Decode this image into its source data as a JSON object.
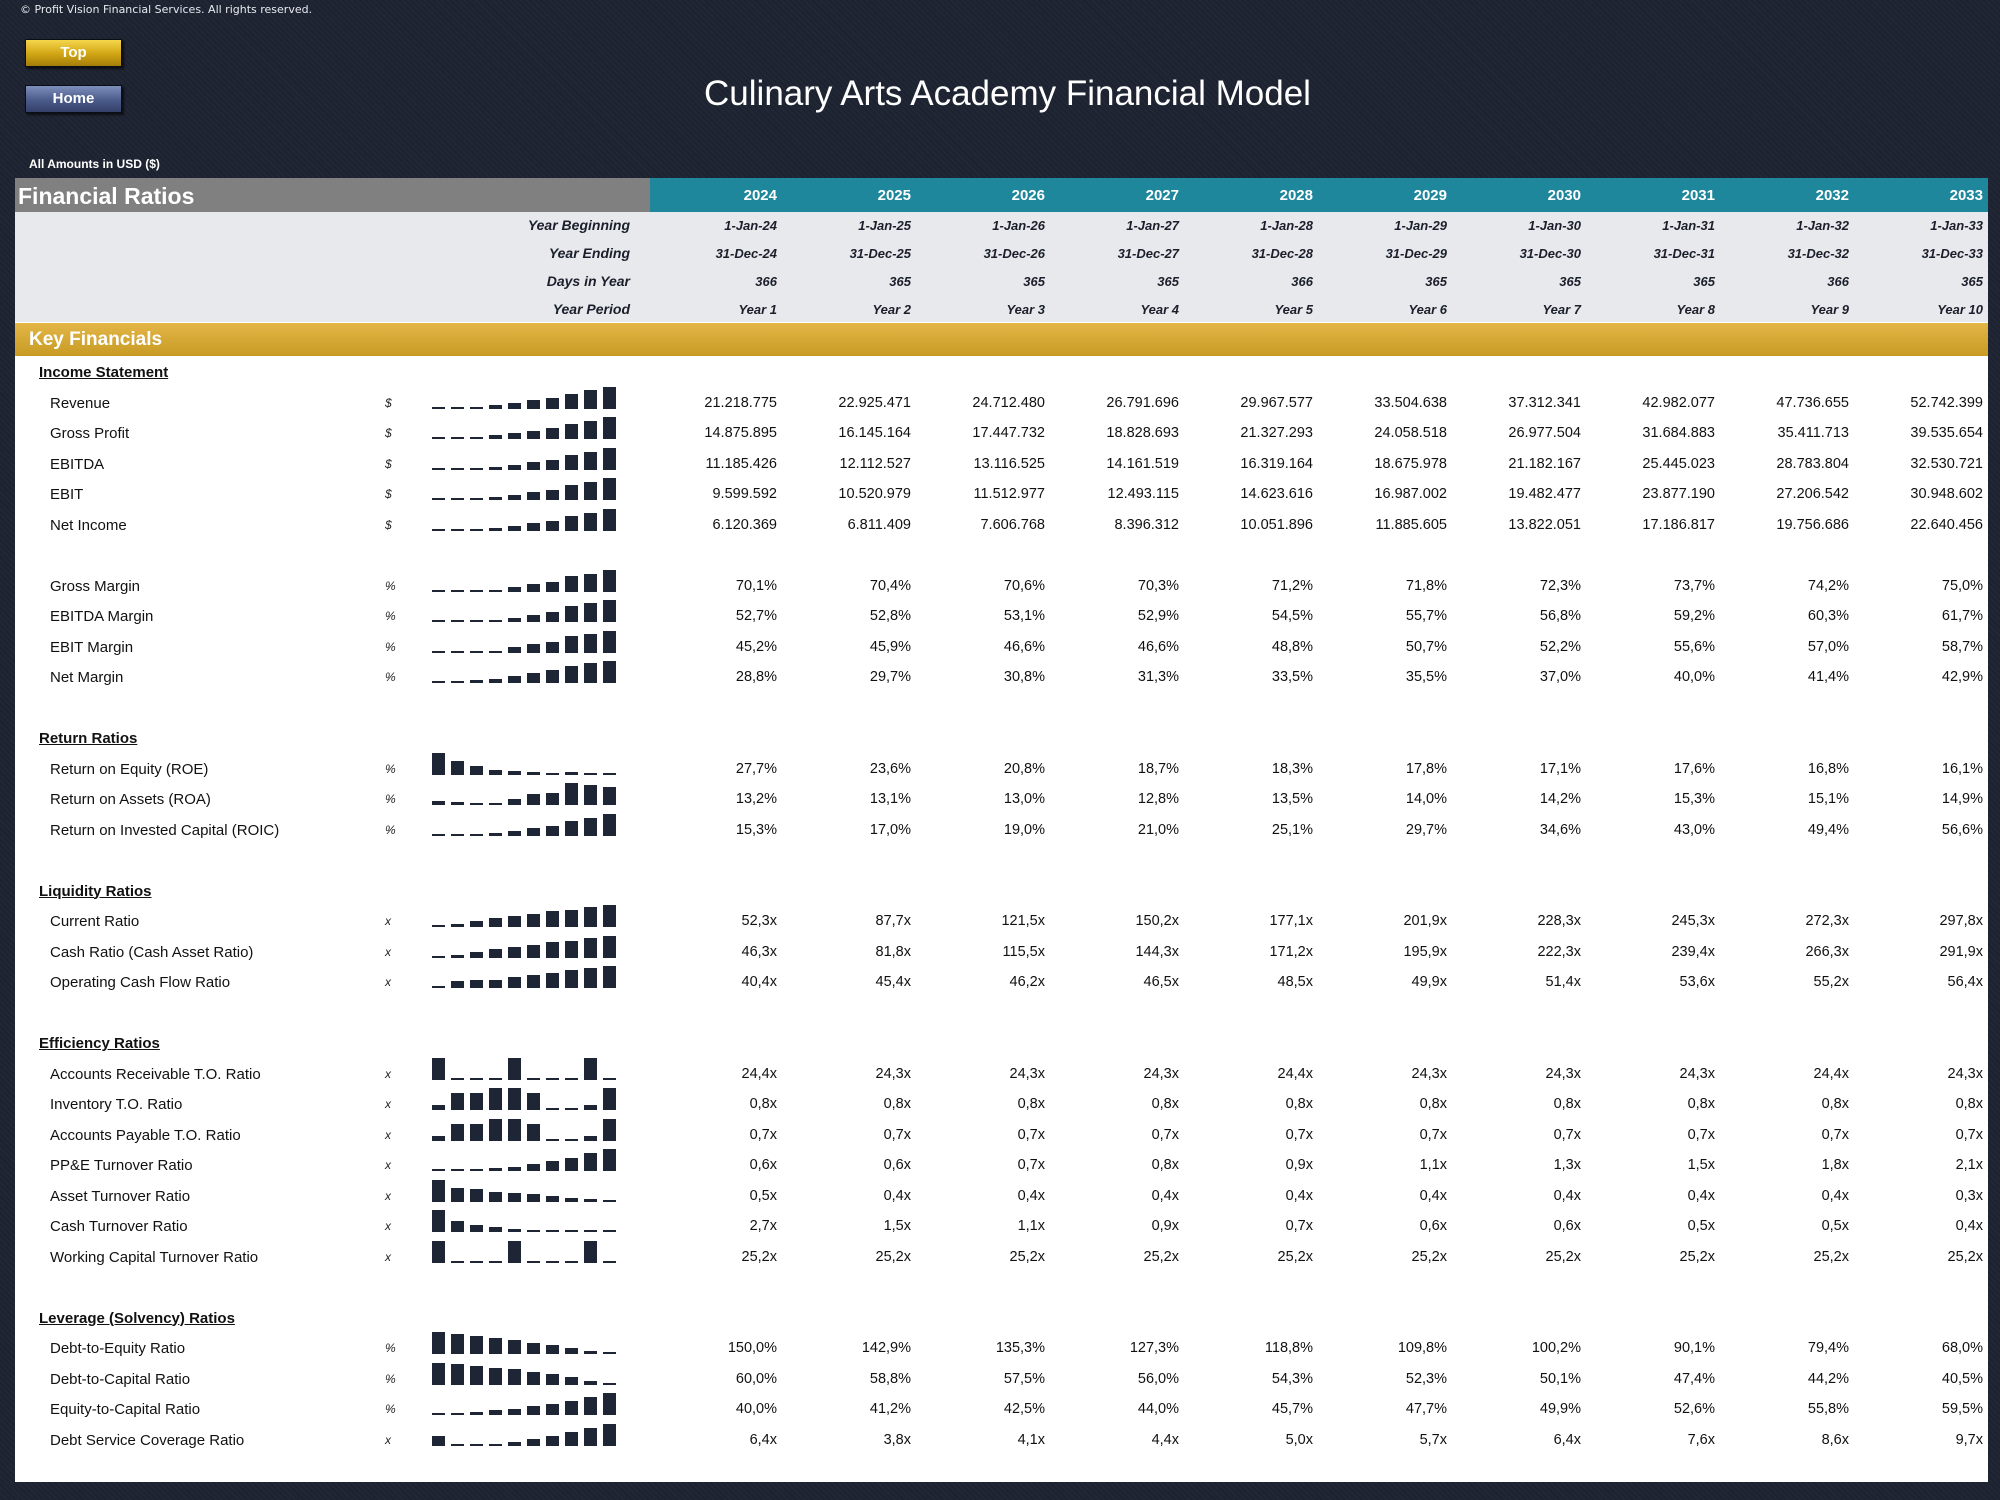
{
  "copyright": "© Profit Vision Financial Services. All rights reserved.",
  "nav": {
    "top_label": "Top",
    "home_label": "Home"
  },
  "title": "Culinary Arts Academy Financial Model",
  "currency_note": "All Amounts in  USD ($)",
  "colors": {
    "header_gray": "#808080",
    "years_teal": "#1f879c",
    "key_financials_gold": "#d4a733",
    "spark_bar": "#1e2636"
  },
  "header": {
    "section_label": "Financial Ratios",
    "years": [
      "2024",
      "2025",
      "2026",
      "2027",
      "2028",
      "2029",
      "2030",
      "2031",
      "2032",
      "2033"
    ],
    "info_rows": [
      {
        "label": "Year Beginning",
        "values": [
          "1-Jan-24",
          "1-Jan-25",
          "1-Jan-26",
          "1-Jan-27",
          "1-Jan-28",
          "1-Jan-29",
          "1-Jan-30",
          "1-Jan-31",
          "1-Jan-32",
          "1-Jan-33"
        ]
      },
      {
        "label": "Year Ending",
        "values": [
          "31-Dec-24",
          "31-Dec-25",
          "31-Dec-26",
          "31-Dec-27",
          "31-Dec-28",
          "31-Dec-29",
          "31-Dec-30",
          "31-Dec-31",
          "31-Dec-32",
          "31-Dec-33"
        ]
      },
      {
        "label": "Days in Year",
        "values": [
          "366",
          "365",
          "365",
          "365",
          "366",
          "365",
          "365",
          "365",
          "366",
          "365"
        ]
      },
      {
        "label": "Year Period",
        "values": [
          "Year 1",
          "Year 2",
          "Year 3",
          "Year 4",
          "Year 5",
          "Year 6",
          "Year 7",
          "Year 8",
          "Year 9",
          "Year 10"
        ]
      }
    ]
  },
  "key_financials_label": "Key Financials",
  "sections": [
    {
      "title": "Income Statement",
      "rows": [
        {
          "label": "Revenue",
          "unit": "$",
          "values": [
            "21.218.775",
            "22.925.471",
            "24.712.480",
            "26.791.696",
            "29.967.577",
            "33.504.638",
            "37.312.341",
            "42.982.077",
            "47.736.655",
            "52.742.399"
          ],
          "spark": [
            21218775,
            22925471,
            24712480,
            26791696,
            29967577,
            33504638,
            37312341,
            42982077,
            47736655,
            52742399
          ]
        },
        {
          "label": "Gross Profit",
          "unit": "$",
          "values": [
            "14.875.895",
            "16.145.164",
            "17.447.732",
            "18.828.693",
            "21.327.293",
            "24.058.518",
            "26.977.504",
            "31.684.883",
            "35.411.713",
            "39.535.654"
          ],
          "spark": [
            14875895,
            16145164,
            17447732,
            18828693,
            21327293,
            24058518,
            26977504,
            31684883,
            35411713,
            39535654
          ]
        },
        {
          "label": "EBITDA",
          "unit": "$",
          "values": [
            "11.185.426",
            "12.112.527",
            "13.116.525",
            "14.161.519",
            "16.319.164",
            "18.675.978",
            "21.182.167",
            "25.445.023",
            "28.783.804",
            "32.530.721"
          ],
          "spark": [
            11185426,
            12112527,
            13116525,
            14161519,
            16319164,
            18675978,
            21182167,
            25445023,
            28783804,
            32530721
          ]
        },
        {
          "label": "EBIT",
          "unit": "$",
          "values": [
            "9.599.592",
            "10.520.979",
            "11.512.977",
            "12.493.115",
            "14.623.616",
            "16.987.002",
            "19.482.477",
            "23.877.190",
            "27.206.542",
            "30.948.602"
          ],
          "spark": [
            9599592,
            10520979,
            11512977,
            12493115,
            14623616,
            16987002,
            19482477,
            23877190,
            27206542,
            30948602
          ]
        },
        {
          "label": "Net Income",
          "unit": "$",
          "values": [
            "6.120.369",
            "6.811.409",
            "7.606.768",
            "8.396.312",
            "10.051.896",
            "11.885.605",
            "13.822.051",
            "17.186.817",
            "19.756.686",
            "22.640.456"
          ],
          "spark": [
            6120369,
            6811409,
            7606768,
            8396312,
            10051896,
            11885605,
            13822051,
            17186817,
            19756686,
            22640456
          ]
        }
      ]
    },
    {
      "title": "",
      "rows": [
        {
          "label": "Gross Margin",
          "unit": "%",
          "values": [
            "70,1%",
            "70,4%",
            "70,6%",
            "70,3%",
            "71,2%",
            "71,8%",
            "72,3%",
            "73,7%",
            "74,2%",
            "75,0%"
          ],
          "spark": [
            70.1,
            70.4,
            70.6,
            70.3,
            71.2,
            71.8,
            72.3,
            73.7,
            74.2,
            75.0
          ]
        },
        {
          "label": "EBITDA Margin",
          "unit": "%",
          "values": [
            "52,7%",
            "52,8%",
            "53,1%",
            "52,9%",
            "54,5%",
            "55,7%",
            "56,8%",
            "59,2%",
            "60,3%",
            "61,7%"
          ],
          "spark": [
            52.7,
            52.8,
            53.1,
            52.9,
            54.5,
            55.7,
            56.8,
            59.2,
            60.3,
            61.7
          ]
        },
        {
          "label": "EBIT Margin",
          "unit": "%",
          "values": [
            "45,2%",
            "45,9%",
            "46,6%",
            "46,6%",
            "48,8%",
            "50,7%",
            "52,2%",
            "55,6%",
            "57,0%",
            "58,7%"
          ],
          "spark": [
            45.2,
            45.9,
            46.6,
            46.6,
            48.8,
            50.7,
            52.2,
            55.6,
            57.0,
            58.7
          ]
        },
        {
          "label": "Net Margin",
          "unit": "%",
          "values": [
            "28,8%",
            "29,7%",
            "30,8%",
            "31,3%",
            "33,5%",
            "35,5%",
            "37,0%",
            "40,0%",
            "41,4%",
            "42,9%"
          ],
          "spark": [
            28.8,
            29.7,
            30.8,
            31.3,
            33.5,
            35.5,
            37.0,
            40.0,
            41.4,
            42.9
          ]
        }
      ]
    },
    {
      "title": "Return Ratios",
      "rows": [
        {
          "label": "Return on Equity (ROE)",
          "unit": "%",
          "values": [
            "27,7%",
            "23,6%",
            "20,8%",
            "18,7%",
            "18,3%",
            "17,8%",
            "17,1%",
            "17,6%",
            "16,8%",
            "16,1%"
          ],
          "spark": [
            27.7,
            23.6,
            20.8,
            18.7,
            18.3,
            17.8,
            17.1,
            17.6,
            16.8,
            16.1
          ]
        },
        {
          "label": "Return on Assets (ROA)",
          "unit": "%",
          "values": [
            "13,2%",
            "13,1%",
            "13,0%",
            "12,8%",
            "13,5%",
            "14,0%",
            "14,2%",
            "15,3%",
            "15,1%",
            "14,9%"
          ],
          "spark": [
            13.2,
            13.1,
            13.0,
            12.8,
            13.5,
            14.0,
            14.2,
            15.3,
            15.1,
            14.9
          ]
        },
        {
          "label": "Return on Invested Capital (ROIC)",
          "unit": "%",
          "values": [
            "15,3%",
            "17,0%",
            "19,0%",
            "21,0%",
            "25,1%",
            "29,7%",
            "34,6%",
            "43,0%",
            "49,4%",
            "56,6%"
          ],
          "spark": [
            15.3,
            17.0,
            19.0,
            21.0,
            25.1,
            29.7,
            34.6,
            43.0,
            49.4,
            56.6
          ]
        }
      ]
    },
    {
      "title": "Liquidity Ratios",
      "rows": [
        {
          "label": "Current Ratio",
          "unit": "x",
          "values": [
            "52,3x",
            "87,7x",
            "121,5x",
            "150,2x",
            "177,1x",
            "201,9x",
            "228,3x",
            "245,3x",
            "272,3x",
            "297,8x"
          ],
          "spark": [
            52.3,
            87.7,
            121.5,
            150.2,
            177.1,
            201.9,
            228.3,
            245.3,
            272.3,
            297.8
          ]
        },
        {
          "label": "Cash Ratio (Cash Asset Ratio)",
          "unit": "x",
          "values": [
            "46,3x",
            "81,8x",
            "115,5x",
            "144,3x",
            "171,2x",
            "195,9x",
            "222,3x",
            "239,4x",
            "266,3x",
            "291,9x"
          ],
          "spark": [
            46.3,
            81.8,
            115.5,
            144.3,
            171.2,
            195.9,
            222.3,
            239.4,
            266.3,
            291.9
          ]
        },
        {
          "label": "Operating Cash Flow Ratio",
          "unit": "x",
          "values": [
            "40,4x",
            "45,4x",
            "46,2x",
            "46,5x",
            "48,5x",
            "49,9x",
            "51,4x",
            "53,6x",
            "55,2x",
            "56,4x"
          ],
          "spark": [
            40.4,
            45.4,
            46.2,
            46.5,
            48.5,
            49.9,
            51.4,
            53.6,
            55.2,
            56.4
          ]
        }
      ]
    },
    {
      "title": "Efficiency Ratios",
      "rows": [
        {
          "label": "Accounts Receivable T.O. Ratio",
          "unit": "x",
          "values": [
            "24,4x",
            "24,3x",
            "24,3x",
            "24,3x",
            "24,4x",
            "24,3x",
            "24,3x",
            "24,3x",
            "24,4x",
            "24,3x"
          ],
          "spark": [
            24.4,
            24.3,
            24.3,
            24.3,
            24.4,
            24.3,
            24.3,
            24.3,
            24.4,
            24.3
          ]
        },
        {
          "label": "Inventory T.O. Ratio",
          "unit": "x",
          "values": [
            "0,8x",
            "0,8x",
            "0,8x",
            "0,8x",
            "0,8x",
            "0,8x",
            "0,8x",
            "0,8x",
            "0,8x",
            "0,8x"
          ],
          "spark": [
            0.795,
            0.8,
            0.8,
            0.802,
            0.802,
            0.8,
            0.793,
            0.793,
            0.795,
            0.802
          ]
        },
        {
          "label": "Accounts Payable T.O. Ratio",
          "unit": "x",
          "values": [
            "0,7x",
            "0,7x",
            "0,7x",
            "0,7x",
            "0,7x",
            "0,7x",
            "0,7x",
            "0,7x",
            "0,7x",
            "0,7x"
          ],
          "spark": [
            0.695,
            0.7,
            0.7,
            0.702,
            0.702,
            0.7,
            0.693,
            0.693,
            0.695,
            0.702
          ]
        },
        {
          "label": "PP&E Turnover Ratio",
          "unit": "x",
          "values": [
            "0,6x",
            "0,6x",
            "0,7x",
            "0,8x",
            "0,9x",
            "1,1x",
            "1,3x",
            "1,5x",
            "1,8x",
            "2,1x"
          ],
          "spark": [
            0.6,
            0.6,
            0.7,
            0.8,
            0.9,
            1.1,
            1.3,
            1.5,
            1.8,
            2.1
          ]
        },
        {
          "label": "Asset Turnover Ratio",
          "unit": "x",
          "values": [
            "0,5x",
            "0,4x",
            "0,4x",
            "0,4x",
            "0,4x",
            "0,4x",
            "0,4x",
            "0,4x",
            "0,4x",
            "0,3x"
          ],
          "spark": [
            0.5,
            0.44,
            0.43,
            0.41,
            0.4,
            0.39,
            0.38,
            0.36,
            0.35,
            0.33
          ]
        },
        {
          "label": "Cash Turnover Ratio",
          "unit": "x",
          "values": [
            "2,7x",
            "1,5x",
            "1,1x",
            "0,9x",
            "0,7x",
            "0,6x",
            "0,6x",
            "0,5x",
            "0,5x",
            "0,4x"
          ],
          "spark": [
            2.7,
            1.5,
            1.1,
            0.9,
            0.7,
            0.6,
            0.6,
            0.5,
            0.5,
            0.4
          ]
        },
        {
          "label": "Working Capital Turnover Ratio",
          "unit": "x",
          "values": [
            "25,2x",
            "25,2x",
            "25,2x",
            "25,2x",
            "25,2x",
            "25,2x",
            "25,2x",
            "25,2x",
            "25,2x",
            "25,2x"
          ],
          "spark": [
            25.25,
            25.2,
            25.2,
            25.2,
            25.25,
            25.2,
            25.2,
            25.2,
            25.25,
            25.2
          ]
        }
      ]
    },
    {
      "title": "Leverage (Solvency) Ratios",
      "rows": [
        {
          "label": "Debt-to-Equity Ratio",
          "unit": "%",
          "values": [
            "150,0%",
            "142,9%",
            "135,3%",
            "127,3%",
            "118,8%",
            "109,8%",
            "100,2%",
            "90,1%",
            "79,4%",
            "68,0%"
          ],
          "spark": [
            150.0,
            142.9,
            135.3,
            127.3,
            118.8,
            109.8,
            100.2,
            90.1,
            79.4,
            68.0
          ]
        },
        {
          "label": "Debt-to-Capital Ratio",
          "unit": "%",
          "values": [
            "60,0%",
            "58,8%",
            "57,5%",
            "56,0%",
            "54,3%",
            "52,3%",
            "50,1%",
            "47,4%",
            "44,2%",
            "40,5%"
          ],
          "spark": [
            60.0,
            58.8,
            57.5,
            56.0,
            54.3,
            52.3,
            50.1,
            47.4,
            44.2,
            40.5
          ]
        },
        {
          "label": "Equity-to-Capital Ratio",
          "unit": "%",
          "values": [
            "40,0%",
            "41,2%",
            "42,5%",
            "44,0%",
            "45,7%",
            "47,7%",
            "49,9%",
            "52,6%",
            "55,8%",
            "59,5%"
          ],
          "spark": [
            40.0,
            41.2,
            42.5,
            44.0,
            45.7,
            47.7,
            49.9,
            52.6,
            55.8,
            59.5
          ]
        },
        {
          "label": "Debt Service Coverage Ratio",
          "unit": "x",
          "values": [
            "6,4x",
            "3,8x",
            "4,1x",
            "4,4x",
            "5,0x",
            "5,7x",
            "6,4x",
            "7,6x",
            "8,6x",
            "9,7x"
          ],
          "spark": [
            6.4,
            3.8,
            4.1,
            4.4,
            5.0,
            5.7,
            6.4,
            7.6,
            8.6,
            9.7
          ]
        }
      ]
    }
  ]
}
